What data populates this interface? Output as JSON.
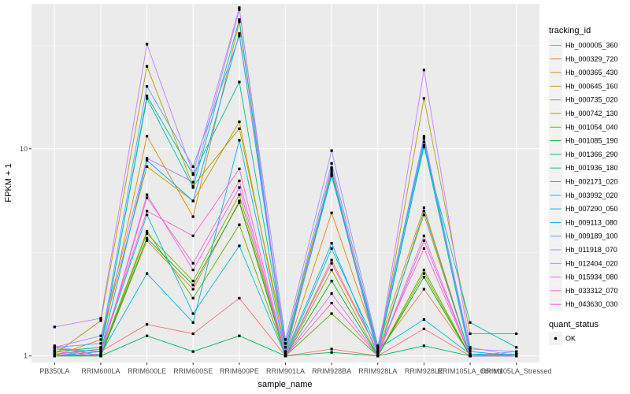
{
  "chart_data": {
    "type": "line",
    "xlabel": "sample_name",
    "ylabel": "FPKM + 1",
    "y_scale": "log10",
    "ylim": [
      0.93,
      50
    ],
    "y_ticks": [
      1,
      10
    ],
    "y_tick_labels": [
      "1",
      "10"
    ],
    "grid": true,
    "categories": [
      "PB350LA",
      "RRIM600LA",
      "RRIM600LE",
      "RRIM600SE",
      "RRIM600PE",
      "RRIM901LA",
      "RRIM928BA",
      "RRIM928LA",
      "RRIM928LE",
      "RRIM105LA_Control",
      "RRIM105LA_Stressed"
    ],
    "legend": {
      "position": "right",
      "title": "tracking_id",
      "shape_title": "quant_status",
      "shape_label": "OK"
    },
    "series": [
      {
        "name": "Hb_000005_360",
        "color": "#F8766D",
        "values": [
          1.0,
          1.05,
          1.42,
          1.28,
          1.9,
          1.0,
          1.08,
          1.0,
          1.35,
          1.0,
          1.0
        ]
      },
      {
        "name": "Hb_000329_720",
        "color": "#EC8239",
        "values": [
          1.1,
          1.0,
          3.6,
          2.1,
          5.6,
          1.0,
          2.9,
          1.05,
          2.1,
          1.02,
          1.0
        ]
      },
      {
        "name": "Hb_000365_430",
        "color": "#DB8E00",
        "values": [
          1.05,
          1.1,
          11.5,
          4.7,
          41.0,
          1.02,
          4.9,
          1.1,
          5.2,
          1.0,
          1.02
        ]
      },
      {
        "name": "Hb_000645_160",
        "color": "#C79800",
        "values": [
          1.0,
          1.2,
          8.2,
          5.6,
          13.5,
          1.05,
          8.0,
          1.05,
          4.8,
          1.0,
          1.0
        ]
      },
      {
        "name": "Hb_000735_020",
        "color": "#AEA200",
        "values": [
          1.02,
          1.48,
          25.0,
          6.6,
          12.5,
          1.15,
          7.8,
          1.0,
          17.5,
          1.28,
          1.28
        ]
      },
      {
        "name": "Hb_000742_130",
        "color": "#8FAA00",
        "values": [
          1.0,
          1.0,
          3.9,
          2.3,
          6.0,
          1.0,
          2.6,
          1.0,
          2.5,
          1.0,
          1.0
        ]
      },
      {
        "name": "Hb_001054_040",
        "color": "#64B200",
        "values": [
          1.0,
          1.02,
          4.0,
          1.9,
          4.3,
          1.0,
          1.6,
          1.0,
          2.6,
          1.0,
          1.0
        ]
      },
      {
        "name": "Hb_001085_190",
        "color": "#00B81B",
        "values": [
          1.0,
          1.0,
          3.7,
          2.2,
          5.5,
          1.0,
          2.3,
          1.0,
          2.4,
          1.0,
          1.0
        ]
      },
      {
        "name": "Hb_001366_290",
        "color": "#00BD5C",
        "values": [
          1.0,
          1.0,
          1.25,
          1.05,
          1.25,
          1.0,
          1.04,
          1.0,
          1.12,
          1.0,
          1.0
        ]
      },
      {
        "name": "Hb_001936_180",
        "color": "#00C08E",
        "values": [
          1.02,
          1.08,
          18.0,
          7.5,
          21.0,
          1.1,
          7.5,
          1.02,
          10.4,
          1.0,
          1.0
        ]
      },
      {
        "name": "Hb_002171_020",
        "color": "#00C1B2",
        "values": [
          1.05,
          1.1,
          17.5,
          6.5,
          42.0,
          1.05,
          7.6,
          1.05,
          10.2,
          1.45,
          1.1
        ]
      },
      {
        "name": "Hb_003992_020",
        "color": "#00BFD1",
        "values": [
          1.08,
          1.05,
          4.8,
          1.6,
          3.4,
          1.0,
          3.3,
          1.08,
          1.5,
          1.02,
          1.02
        ]
      },
      {
        "name": "Hb_007290_050",
        "color": "#00B8E7",
        "values": [
          1.0,
          1.02,
          2.5,
          1.45,
          11.0,
          1.02,
          3.5,
          1.0,
          5.0,
          1.0,
          1.0
        ]
      },
      {
        "name": "Hb_009113_080",
        "color": "#00ABFD",
        "values": [
          1.0,
          1.05,
          8.8,
          5.6,
          36.0,
          1.05,
          7.4,
          1.1,
          10.8,
          1.05,
          1.0
        ]
      },
      {
        "name": "Hb_009189_100",
        "color": "#619CFF",
        "values": [
          1.1,
          1.15,
          20.0,
          8.2,
          35.0,
          1.15,
          8.5,
          1.1,
          11.5,
          1.0,
          1.05
        ]
      },
      {
        "name": "Hb_011918_070",
        "color": "#A58AFF",
        "values": [
          1.1,
          1.25,
          9.0,
          6.9,
          47.0,
          1.2,
          9.8,
          1.12,
          11.2,
          1.08,
          1.05
        ]
      },
      {
        "name": "Hb_012404_020",
        "color": "#C77CFF",
        "values": [
          1.38,
          1.52,
          32.0,
          7.6,
          48.0,
          1.0,
          8.1,
          1.0,
          24.0,
          1.1,
          1.0
        ]
      },
      {
        "name": "Hb_015934_080",
        "color": "#E46FEC",
        "values": [
          1.05,
          1.0,
          6.0,
          2.6,
          6.5,
          1.0,
          2.0,
          1.0,
          3.8,
          1.0,
          1.0
        ]
      },
      {
        "name": "Hb_033312_070",
        "color": "#F566D5",
        "values": [
          1.12,
          1.0,
          5.8,
          2.8,
          7.0,
          1.0,
          1.8,
          1.0,
          3.6,
          1.0,
          1.0
        ]
      },
      {
        "name": "Hb_043630_030",
        "color": "#FB61D7",
        "values": [
          1.0,
          1.08,
          5.0,
          3.8,
          8.0,
          1.0,
          2.8,
          1.05,
          3.3,
          1.0,
          1.0
        ]
      }
    ]
  }
}
